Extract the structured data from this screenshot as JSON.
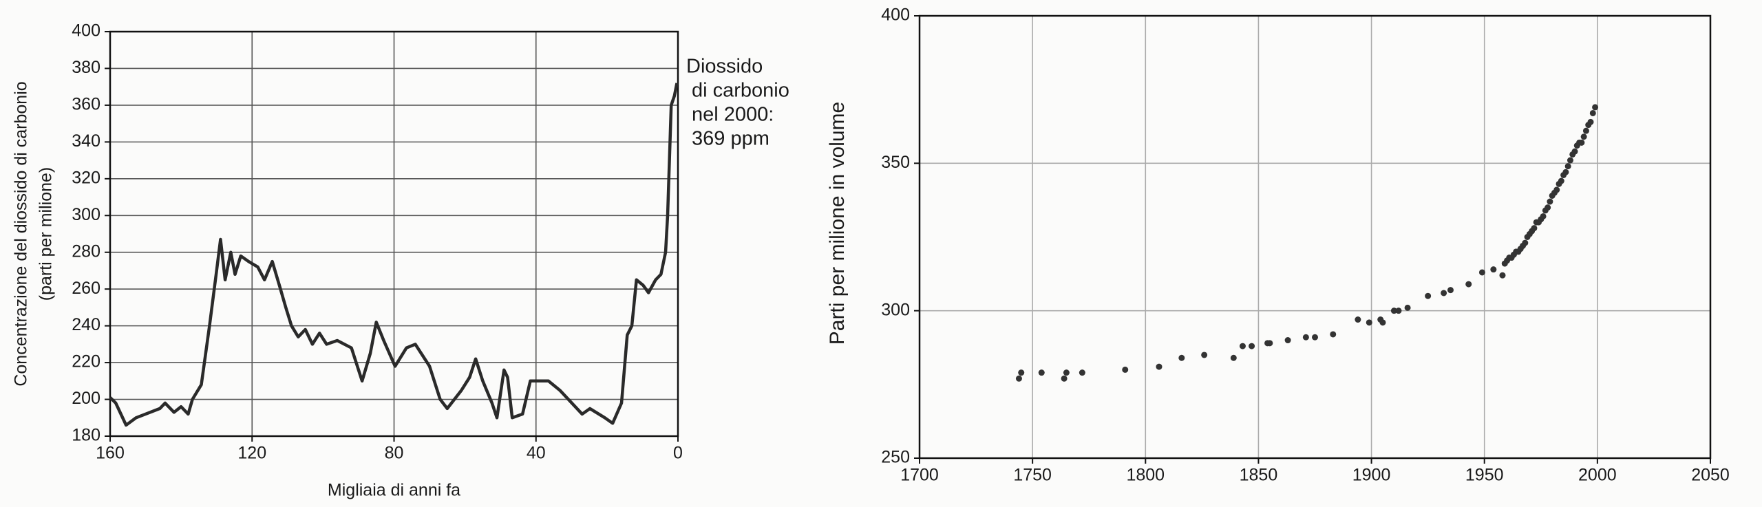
{
  "chart_data": [
    {
      "type": "line",
      "xlabel": "Migliaia di anni fa",
      "ylabel": [
        "Concentrazione del diossido di carbonio",
        "(parti per milione)"
      ],
      "annotation": [
        "Diossido",
        "di carbonio",
        "nel 2000:",
        "369 ppm"
      ],
      "xlim": [
        160,
        0
      ],
      "xticks": [
        160,
        120,
        80,
        40,
        0
      ],
      "ylim": [
        180,
        400
      ],
      "yticks": [
        180,
        200,
        220,
        240,
        260,
        280,
        300,
        320,
        340,
        360,
        380,
        400
      ],
      "grid": true,
      "color": "#2a2a2a",
      "x": [
        160,
        158.4,
        155.5,
        152.7,
        146,
        144.5,
        142,
        140,
        138,
        136.8,
        134.3,
        132,
        130,
        128.9,
        127.6,
        126,
        124.8,
        123.2,
        121,
        118.4,
        116.5,
        114.3,
        112,
        110.5,
        108.9,
        107,
        105,
        103,
        101,
        99,
        96,
        92,
        89,
        86.7,
        85,
        82.9,
        79.7,
        76.5,
        74,
        70,
        67,
        65,
        61,
        58.7,
        57,
        55,
        52.4,
        51,
        49,
        48,
        46.7,
        43.8,
        41.6,
        36.5,
        33.3,
        27,
        24.8,
        20.6,
        18.4,
        15.9,
        14.3,
        13,
        11.7,
        9.8,
        8.3,
        6.3,
        4.8,
        3.5,
        2.9,
        1.9,
        1,
        0.3
      ],
      "values": [
        201,
        198,
        186,
        190,
        195,
        198,
        193,
        196,
        192,
        200,
        208,
        240,
        270,
        287,
        265,
        280,
        268,
        278,
        275,
        272,
        265,
        275,
        260,
        250,
        240,
        234,
        238,
        230,
        236,
        230,
        232,
        228,
        210,
        225,
        242,
        232,
        218,
        228,
        230,
        218,
        200,
        195,
        205,
        212,
        222,
        210,
        198,
        190,
        216,
        212,
        190,
        192,
        210,
        210,
        205,
        192,
        195,
        190,
        187,
        198,
        235,
        240,
        265,
        262,
        258,
        265,
        268,
        280,
        300,
        360,
        365,
        372
      ]
    },
    {
      "type": "scatter",
      "ylabel": "Parti per milione in volume",
      "xlim": [
        1700,
        2050
      ],
      "xticks": [
        1700,
        1750,
        1800,
        1850,
        1900,
        1950,
        2000,
        2050
      ],
      "ylim": [
        250,
        400
      ],
      "yticks": [
        250,
        300,
        350,
        400
      ],
      "grid": true,
      "color": "#333333",
      "x": [
        1744,
        1745,
        1754,
        1764,
        1765,
        1772,
        1791,
        1806,
        1816,
        1826,
        1839,
        1843,
        1847,
        1854,
        1855,
        1863,
        1871,
        1875,
        1883,
        1894,
        1899,
        1904,
        1905,
        1910,
        1912,
        1916,
        1925,
        1932,
        1935,
        1943,
        1949,
        1954,
        1958,
        1959,
        1960,
        1961,
        1962,
        1963,
        1964,
        1965,
        1966,
        1967,
        1968,
        1969,
        1970,
        1971,
        1972,
        1973,
        1974,
        1975,
        1976,
        1977,
        1978,
        1979,
        1980,
        1981,
        1982,
        1983,
        1984,
        1985,
        1986,
        1987,
        1988,
        1989,
        1990,
        1991,
        1992,
        1993,
        1994,
        1995,
        1996,
        1997,
        1998,
        1999
      ],
      "values": [
        277,
        279,
        279,
        277,
        279,
        279,
        280,
        281,
        284,
        285,
        284,
        288,
        288,
        289,
        289,
        290,
        291,
        291,
        292,
        297,
        296,
        297,
        296,
        300,
        300,
        301,
        305,
        306,
        307,
        309,
        313,
        314,
        312,
        316,
        317,
        318,
        318,
        319,
        320,
        320,
        321,
        322,
        323,
        325,
        326,
        327,
        328,
        330,
        330,
        331,
        332,
        334,
        335,
        337,
        339,
        340,
        341,
        343,
        344,
        346,
        347,
        349,
        351,
        353,
        354,
        356,
        357,
        357,
        359,
        361,
        363,
        364,
        367,
        369
      ]
    }
  ]
}
